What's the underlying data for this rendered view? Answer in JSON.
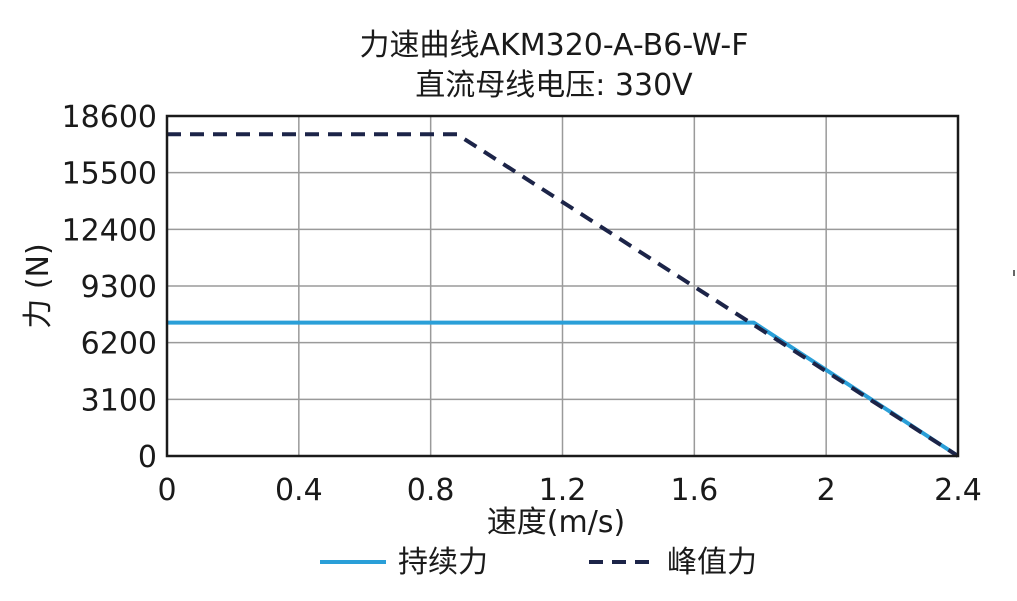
{
  "chart_data": {
    "type": "line",
    "title": "力速曲线AKM320-A-B6-W-F",
    "subtitle": "直流母线电压: 330V",
    "xlabel": "速度(m/s)",
    "ylabel": "力 (N)",
    "xlim": [
      0,
      2.4
    ],
    "ylim": [
      0,
      18600
    ],
    "x_ticks": [
      0,
      0.4,
      0.8,
      1.2,
      1.6,
      2,
      2.4
    ],
    "x_tick_labels": [
      "0",
      "0.4",
      "0.8",
      "1.2",
      "1.6",
      "2",
      "2.4"
    ],
    "y_ticks": [
      0,
      3100,
      6200,
      9300,
      12400,
      15500,
      18600
    ],
    "y_tick_labels": [
      "0",
      "3100",
      "6200",
      "9300",
      "12400",
      "15500",
      "18600"
    ],
    "grid": true,
    "legend_position": "bottom",
    "series": [
      {
        "name": "持续力",
        "color": "#2a9fd8",
        "style": "solid",
        "points": [
          [
            0,
            7300
          ],
          [
            1.78,
            7300
          ],
          [
            2.4,
            0
          ]
        ]
      },
      {
        "name": "峰值力",
        "color": "#1c2448",
        "style": "dashed",
        "points": [
          [
            0,
            17600
          ],
          [
            0.88,
            17600
          ],
          [
            2.4,
            0
          ]
        ]
      }
    ]
  }
}
